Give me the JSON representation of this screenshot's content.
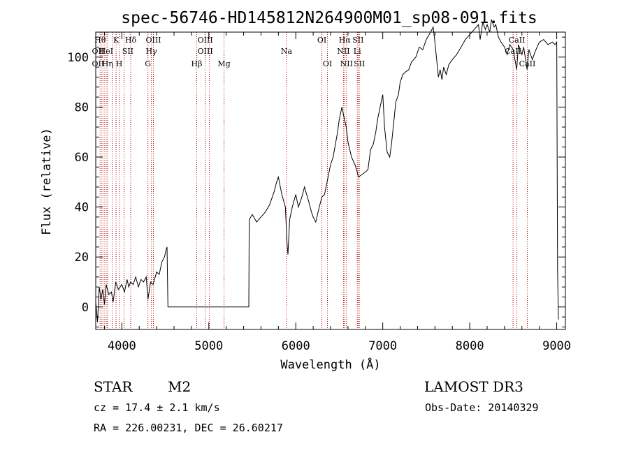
{
  "chart_data": {
    "type": "line",
    "title": "spec-56746-HD145812N264900M01_sp08-091.fits",
    "xlabel": "Wavelength (Å)",
    "ylabel": "Flux (relative)",
    "xlim": [
      3700,
      9100
    ],
    "ylim": [
      -9,
      110
    ],
    "xticks": [
      "4000",
      "5000",
      "6000",
      "7000",
      "8000",
      "9000"
    ],
    "xtick_values": [
      4000,
      5000,
      6000,
      7000,
      8000,
      9000
    ],
    "yticks": [
      "0",
      "20",
      "40",
      "60",
      "80",
      "100"
    ],
    "ytick_values": [
      0,
      20,
      40,
      60,
      80,
      100
    ],
    "grid": false,
    "series": [
      {
        "color": "#000000",
        "points": [
          [
            3700,
            2
          ],
          [
            3720,
            -6
          ],
          [
            3740,
            8
          ],
          [
            3760,
            3
          ],
          [
            3780,
            7
          ],
          [
            3800,
            1
          ],
          [
            3820,
            9
          ],
          [
            3850,
            5
          ],
          [
            3880,
            6
          ],
          [
            3900,
            2
          ],
          [
            3930,
            10
          ],
          [
            3960,
            7
          ],
          [
            4000,
            9
          ],
          [
            4030,
            6
          ],
          [
            4060,
            11
          ],
          [
            4080,
            8
          ],
          [
            4100,
            10
          ],
          [
            4130,
            9
          ],
          [
            4160,
            12
          ],
          [
            4190,
            8
          ],
          [
            4220,
            11
          ],
          [
            4250,
            10
          ],
          [
            4280,
            12
          ],
          [
            4300,
            3
          ],
          [
            4330,
            10
          ],
          [
            4360,
            9
          ],
          [
            4400,
            14
          ],
          [
            4430,
            13
          ],
          [
            4460,
            18
          ],
          [
            4490,
            20
          ],
          [
            4510,
            23
          ],
          [
            4520,
            24
          ],
          [
            4530,
            0
          ],
          [
            5460,
            0
          ],
          [
            5465,
            35
          ],
          [
            5500,
            37
          ],
          [
            5550,
            34
          ],
          [
            5600,
            36
          ],
          [
            5650,
            38
          ],
          [
            5700,
            41
          ],
          [
            5750,
            46
          ],
          [
            5780,
            50
          ],
          [
            5800,
            52
          ],
          [
            5840,
            45
          ],
          [
            5880,
            40
          ],
          [
            5900,
            25
          ],
          [
            5910,
            21
          ],
          [
            5930,
            35
          ],
          [
            5960,
            40
          ],
          [
            6000,
            45
          ],
          [
            6030,
            40
          ],
          [
            6070,
            44
          ],
          [
            6100,
            48
          ],
          [
            6150,
            42
          ],
          [
            6180,
            38
          ],
          [
            6200,
            36
          ],
          [
            6230,
            34
          ],
          [
            6270,
            40
          ],
          [
            6300,
            44
          ],
          [
            6330,
            45
          ],
          [
            6360,
            50
          ],
          [
            6400,
            57
          ],
          [
            6430,
            60
          ],
          [
            6450,
            64
          ],
          [
            6480,
            70
          ],
          [
            6500,
            75
          ],
          [
            6530,
            80
          ],
          [
            6560,
            75
          ],
          [
            6580,
            72
          ],
          [
            6600,
            66
          ],
          [
            6640,
            60
          ],
          [
            6680,
            57
          ],
          [
            6700,
            55
          ],
          [
            6720,
            52
          ],
          [
            6760,
            53
          ],
          [
            6800,
            54
          ],
          [
            6830,
            55
          ],
          [
            6860,
            63
          ],
          [
            6890,
            65
          ],
          [
            6920,
            70
          ],
          [
            6940,
            75
          ],
          [
            6970,
            80
          ],
          [
            7000,
            85
          ],
          [
            7020,
            72
          ],
          [
            7050,
            62
          ],
          [
            7080,
            60
          ],
          [
            7100,
            65
          ],
          [
            7130,
            75
          ],
          [
            7150,
            82
          ],
          [
            7180,
            85
          ],
          [
            7200,
            90
          ],
          [
            7230,
            93
          ],
          [
            7260,
            94
          ],
          [
            7300,
            95
          ],
          [
            7330,
            98
          ],
          [
            7380,
            100
          ],
          [
            7420,
            104
          ],
          [
            7460,
            103
          ],
          [
            7500,
            107
          ],
          [
            7550,
            110
          ],
          [
            7580,
            112
          ],
          [
            7600,
            106
          ],
          [
            7620,
            99
          ],
          [
            7640,
            92
          ],
          [
            7660,
            95
          ],
          [
            7680,
            91
          ],
          [
            7700,
            96
          ],
          [
            7730,
            93
          ],
          [
            7760,
            97
          ],
          [
            7800,
            99
          ],
          [
            7850,
            101
          ],
          [
            7900,
            104
          ],
          [
            7950,
            107
          ],
          [
            8000,
            109
          ],
          [
            8050,
            111
          ],
          [
            8100,
            113
          ],
          [
            8120,
            107
          ],
          [
            8150,
            114
          ],
          [
            8180,
            111
          ],
          [
            8200,
            113
          ],
          [
            8230,
            110
          ],
          [
            8250,
            115
          ],
          [
            8280,
            112
          ],
          [
            8300,
            113
          ],
          [
            8330,
            108
          ],
          [
            8360,
            106
          ],
          [
            8400,
            104
          ],
          [
            8430,
            101
          ],
          [
            8460,
            105
          ],
          [
            8500,
            103
          ],
          [
            8540,
            95
          ],
          [
            8560,
            105
          ],
          [
            8600,
            101
          ],
          [
            8620,
            104
          ],
          [
            8660,
            95
          ],
          [
            8680,
            103
          ],
          [
            8720,
            99
          ],
          [
            8750,
            102
          ],
          [
            8800,
            106
          ],
          [
            8850,
            107
          ],
          [
            8900,
            105
          ],
          [
            8950,
            106
          ],
          [
            8980,
            105
          ],
          [
            9000,
            106
          ],
          [
            9005,
            60
          ],
          [
            9010,
            15
          ],
          [
            9020,
            -5
          ]
        ]
      }
    ],
    "line_markers": {
      "color": "#c00000",
      "wavelengths": [
        3750,
        3771,
        3797,
        3820,
        3835,
        3889,
        3934,
        3970,
        4026,
        4102,
        4300,
        4340,
        4363,
        4861,
        4959,
        5007,
        5175,
        5893,
        6300,
        6364,
        6548,
        6563,
        6583,
        6707,
        6716,
        6731,
        8498,
        8542,
        8662
      ],
      "labels": [
        {
          "text": "Hθ",
          "x": 3750,
          "row": 1
        },
        {
          "text": "K",
          "x": 3934,
          "row": 1
        },
        {
          "text": "Hδ",
          "x": 4102,
          "row": 1
        },
        {
          "text": "OIII",
          "x": 4363,
          "row": 1
        },
        {
          "text": "OIII",
          "x": 4959,
          "row": 1
        },
        {
          "text": "OI",
          "x": 6300,
          "row": 1
        },
        {
          "text": "Hα",
          "x": 6563,
          "row": 1
        },
        {
          "text": "SII",
          "x": 6716,
          "row": 1
        },
        {
          "text": "CaII",
          "x": 8542,
          "row": 1
        },
        {
          "text": "OII",
          "x": 3727,
          "row": 2
        },
        {
          "text": "HeI",
          "x": 3820,
          "row": 2
        },
        {
          "text": "SII",
          "x": 4069,
          "row": 2
        },
        {
          "text": "Hγ",
          "x": 4340,
          "row": 2
        },
        {
          "text": "OIII",
          "x": 4959,
          "row": 2
        },
        {
          "text": "Na",
          "x": 5893,
          "row": 2
        },
        {
          "text": "NII",
          "x": 6548,
          "row": 2
        },
        {
          "text": "Li",
          "x": 6707,
          "row": 2
        },
        {
          "text": "CaII",
          "x": 8498,
          "row": 2
        },
        {
          "text": "OII",
          "x": 3727,
          "row": 3
        },
        {
          "text": "Hη",
          "x": 3835,
          "row": 3
        },
        {
          "text": "H",
          "x": 3970,
          "row": 3
        },
        {
          "text": "G",
          "x": 4300,
          "row": 3
        },
        {
          "text": "Hβ",
          "x": 4861,
          "row": 3
        },
        {
          "text": "Mg",
          "x": 5175,
          "row": 3
        },
        {
          "text": "OI",
          "x": 6364,
          "row": 3
        },
        {
          "text": "NII",
          "x": 6583,
          "row": 3
        },
        {
          "text": "SII",
          "x": 6731,
          "row": 3
        },
        {
          "text": "CaII",
          "x": 8662,
          "row": 3
        }
      ]
    }
  },
  "info": {
    "object_class": "STAR",
    "subclass": "M2",
    "survey": "LAMOST DR3",
    "cz": "cz = 17.4 ± 2.1 km/s",
    "obs_date": "Obs-Date: 20140329",
    "coords": "RA = 226.00231, DEC =  26.60217"
  }
}
